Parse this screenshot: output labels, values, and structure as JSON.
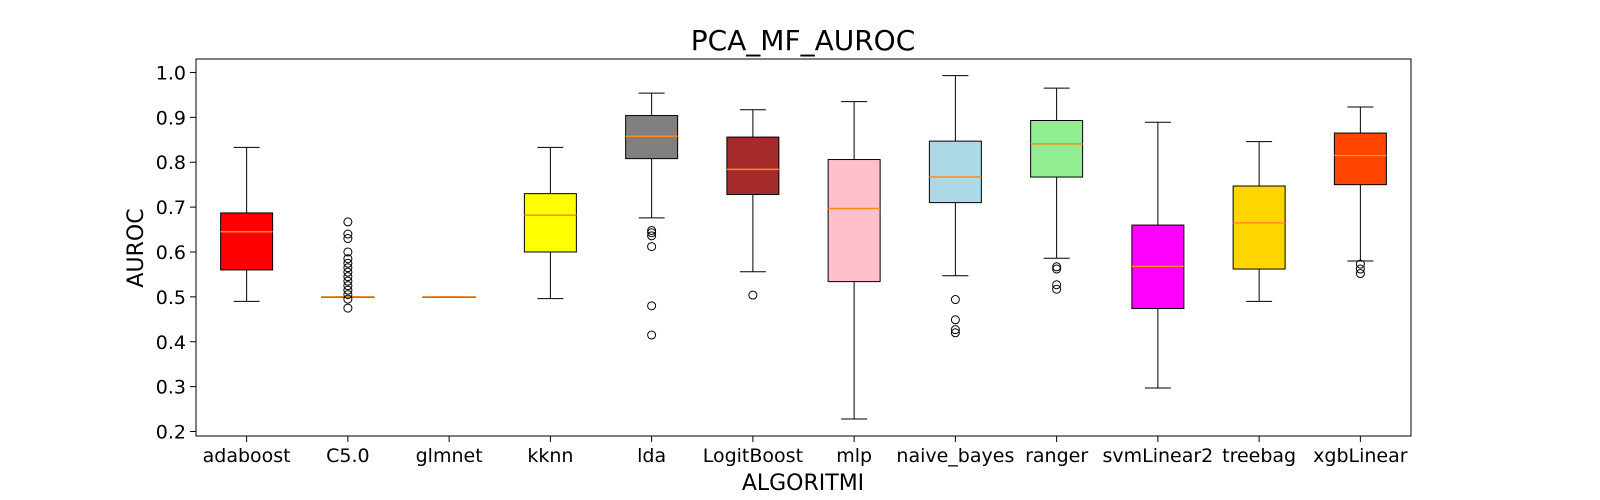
{
  "chart_data": {
    "type": "boxplot",
    "title": "PCA_MF_AUROC",
    "xlabel": "ALGORITMI",
    "ylabel": "AUROC",
    "ylim": [
      0.19,
      1.03
    ],
    "yticks": [
      "0.2",
      "0.3",
      "0.4",
      "0.5",
      "0.6",
      "0.7",
      "0.8",
      "0.9",
      "1.0"
    ],
    "grid": false,
    "median_color": "#ff8c1a",
    "series": [
      {
        "category": "adaboost",
        "color": "#ff0000",
        "whisker_low": 0.49,
        "q1": 0.56,
        "median": 0.645,
        "q3": 0.687,
        "whisker_high": 0.833,
        "outliers": []
      },
      {
        "category": "C5.0",
        "color": "#ffffff",
        "whisker_low": 0.5,
        "q1": 0.5,
        "median": 0.5,
        "q3": 0.5,
        "whisker_high": 0.5,
        "outliers": [
          0.667,
          0.64,
          0.63,
          0.6,
          0.585,
          0.575,
          0.565,
          0.555,
          0.545,
          0.535,
          0.525,
          0.515,
          0.505,
          0.495,
          0.475
        ]
      },
      {
        "category": "glmnet",
        "color": "#ffffff",
        "whisker_low": 0.5,
        "q1": 0.5,
        "median": 0.5,
        "q3": 0.5,
        "whisker_high": 0.5,
        "outliers": []
      },
      {
        "category": "kknn",
        "color": "#ffff00",
        "whisker_low": 0.496,
        "q1": 0.6,
        "median": 0.682,
        "q3": 0.73,
        "whisker_high": 0.833,
        "outliers": []
      },
      {
        "category": "lda",
        "color": "#808080",
        "whisker_low": 0.676,
        "q1": 0.808,
        "median": 0.858,
        "q3": 0.904,
        "whisker_high": 0.954,
        "outliers": [
          0.648,
          0.643,
          0.636,
          0.612,
          0.48,
          0.415
        ]
      },
      {
        "category": "LogitBoost",
        "color": "#a52a2a",
        "whisker_low": 0.556,
        "q1": 0.728,
        "median": 0.784,
        "q3": 0.856,
        "whisker_high": 0.917,
        "outliers": [
          0.504
        ]
      },
      {
        "category": "mlp",
        "color": "#ffc0cb",
        "whisker_low": 0.228,
        "q1": 0.534,
        "median": 0.697,
        "q3": 0.806,
        "whisker_high": 0.935,
        "outliers": []
      },
      {
        "category": "naive_bayes",
        "color": "#add8e6",
        "whisker_low": 0.547,
        "q1": 0.71,
        "median": 0.767,
        "q3": 0.847,
        "whisker_high": 0.993,
        "outliers": [
          0.494,
          0.449,
          0.427,
          0.42
        ]
      },
      {
        "category": "ranger",
        "color": "#90ee90",
        "whisker_low": 0.586,
        "q1": 0.767,
        "median": 0.841,
        "q3": 0.893,
        "whisker_high": 0.965,
        "outliers": [
          0.567,
          0.562,
          0.527,
          0.517
        ]
      },
      {
        "category": "svmLinear2",
        "color": "#ff00ff",
        "whisker_low": 0.297,
        "q1": 0.474,
        "median": 0.568,
        "q3": 0.66,
        "whisker_high": 0.889,
        "outliers": []
      },
      {
        "category": "treebag",
        "color": "#ffd700",
        "whisker_low": 0.49,
        "q1": 0.562,
        "median": 0.665,
        "q3": 0.747,
        "whisker_high": 0.846,
        "outliers": []
      },
      {
        "category": "xgbLinear",
        "color": "#ff4500",
        "whisker_low": 0.58,
        "q1": 0.75,
        "median": 0.815,
        "q3": 0.865,
        "whisker_high": 0.923,
        "outliers": [
          0.573,
          0.562,
          0.552
        ]
      }
    ]
  }
}
